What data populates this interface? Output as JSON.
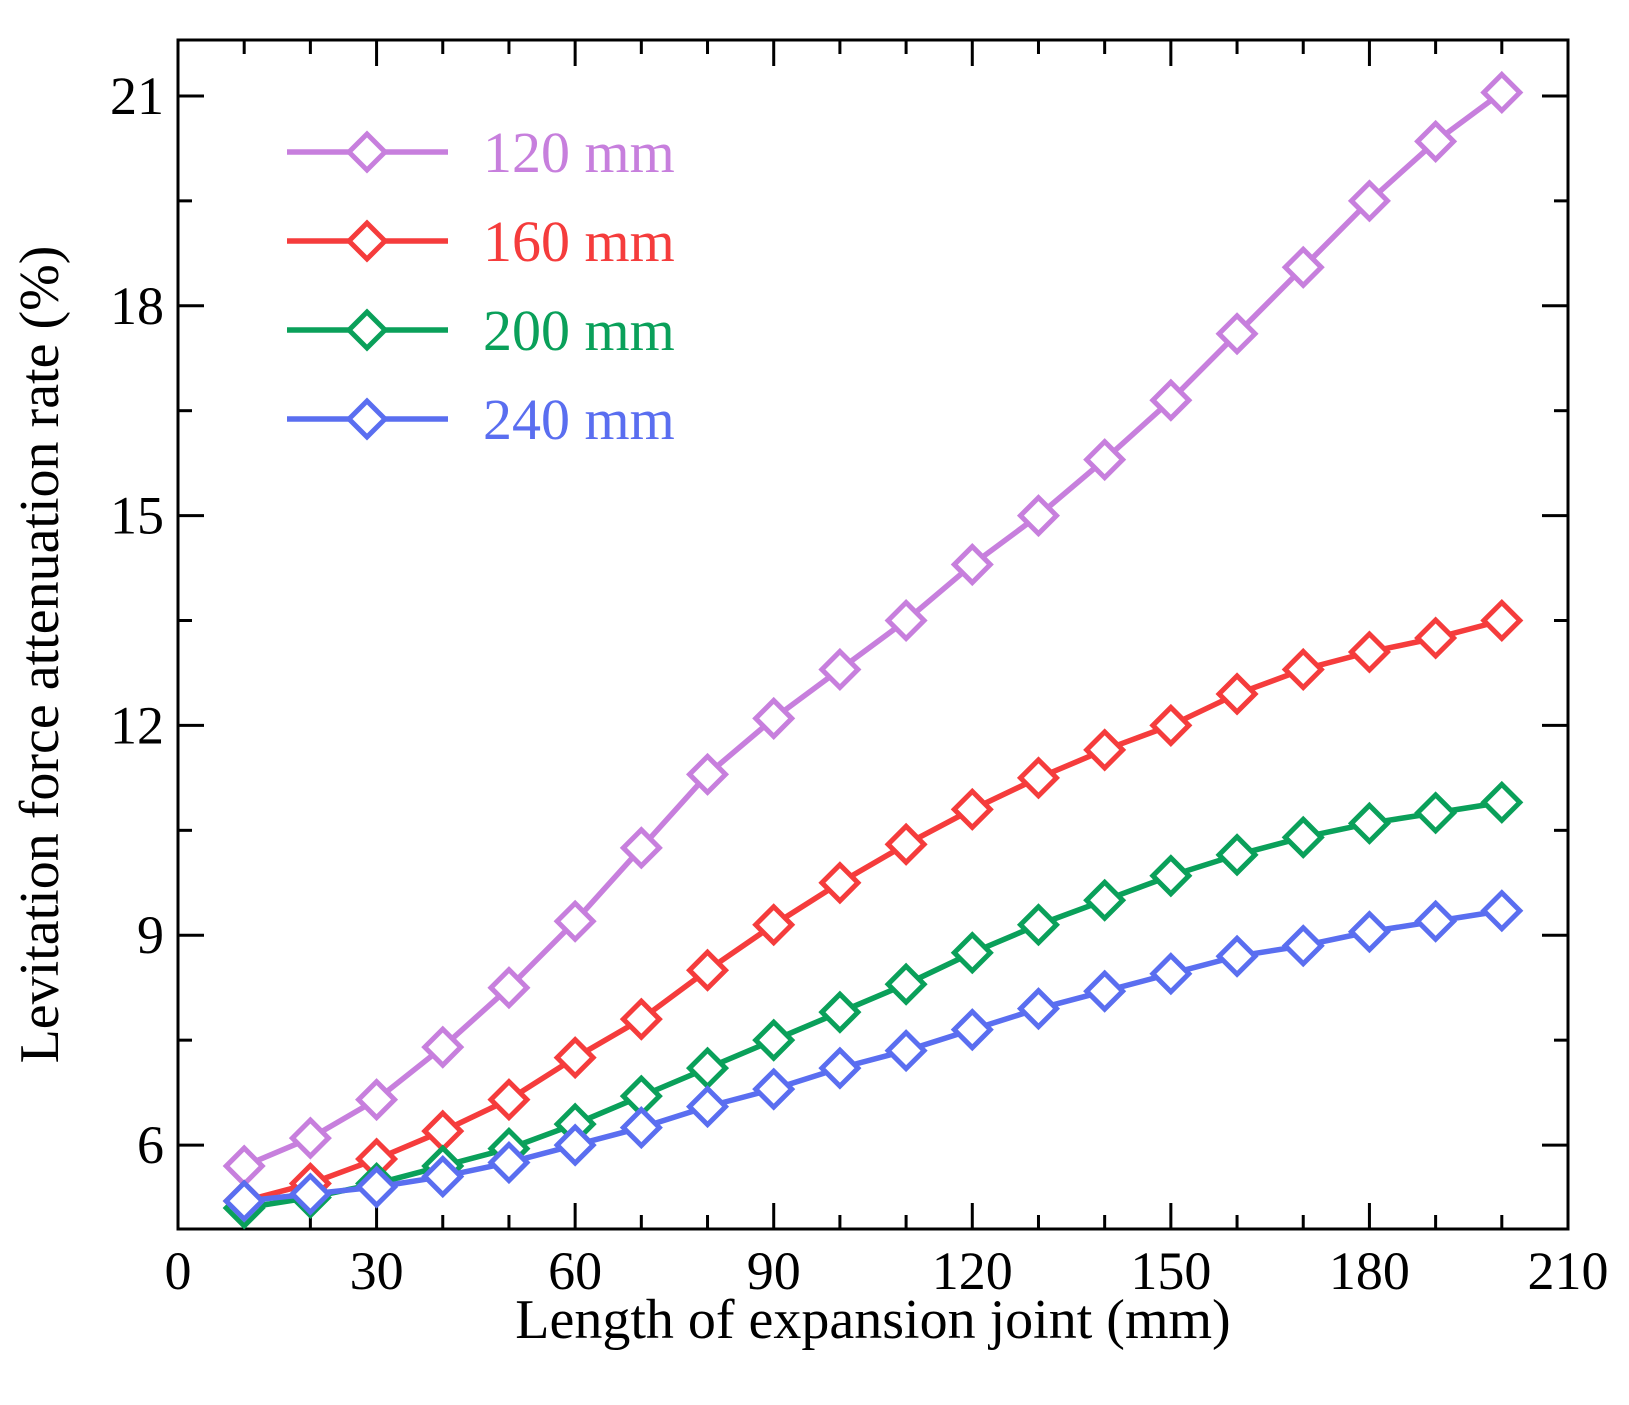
{
  "chart_data": {
    "type": "line",
    "title": "",
    "xlabel": "Length of expansion joint (mm)",
    "ylabel": "Levitation force attenuation rate (%)",
    "xlim": [
      0,
      210
    ],
    "ylim": [
      4.8,
      21.8
    ],
    "xticks": [
      0,
      30,
      60,
      90,
      120,
      150,
      180,
      210
    ],
    "yticks": [
      6,
      9,
      12,
      15,
      18,
      21
    ],
    "grid": false,
    "legend_position": "top-left",
    "marker": "diamond",
    "x": [
      10,
      20,
      30,
      40,
      50,
      60,
      70,
      80,
      90,
      100,
      110,
      120,
      130,
      140,
      150,
      160,
      170,
      180,
      190,
      200
    ],
    "series": [
      {
        "name": "120 mm",
        "color": "#c77fdd",
        "values": [
          5.7,
          6.1,
          6.65,
          7.4,
          8.25,
          9.2,
          10.25,
          11.3,
          12.1,
          12.8,
          13.5,
          14.3,
          15.0,
          15.8,
          16.65,
          17.6,
          18.55,
          19.5,
          20.35,
          21.05
        ]
      },
      {
        "name": "160 mm",
        "color": "#f53c3c",
        "values": [
          5.2,
          5.45,
          5.8,
          6.2,
          6.65,
          7.25,
          7.8,
          8.5,
          9.15,
          9.75,
          10.3,
          10.8,
          11.25,
          11.65,
          12.0,
          12.45,
          12.8,
          13.05,
          13.25,
          13.5
        ]
      },
      {
        "name": "200 mm",
        "color": "#0aa05a",
        "values": [
          5.1,
          5.25,
          5.45,
          5.7,
          5.95,
          6.3,
          6.7,
          7.1,
          7.5,
          7.9,
          8.3,
          8.75,
          9.15,
          9.5,
          9.85,
          10.15,
          10.4,
          10.6,
          10.75,
          10.9
        ]
      },
      {
        "name": "240 mm",
        "color": "#5a6ef0",
        "values": [
          5.2,
          5.3,
          5.4,
          5.55,
          5.75,
          6.0,
          6.25,
          6.55,
          6.8,
          7.1,
          7.35,
          7.65,
          7.95,
          8.2,
          8.45,
          8.7,
          8.85,
          9.05,
          9.2,
          9.35
        ]
      }
    ]
  }
}
